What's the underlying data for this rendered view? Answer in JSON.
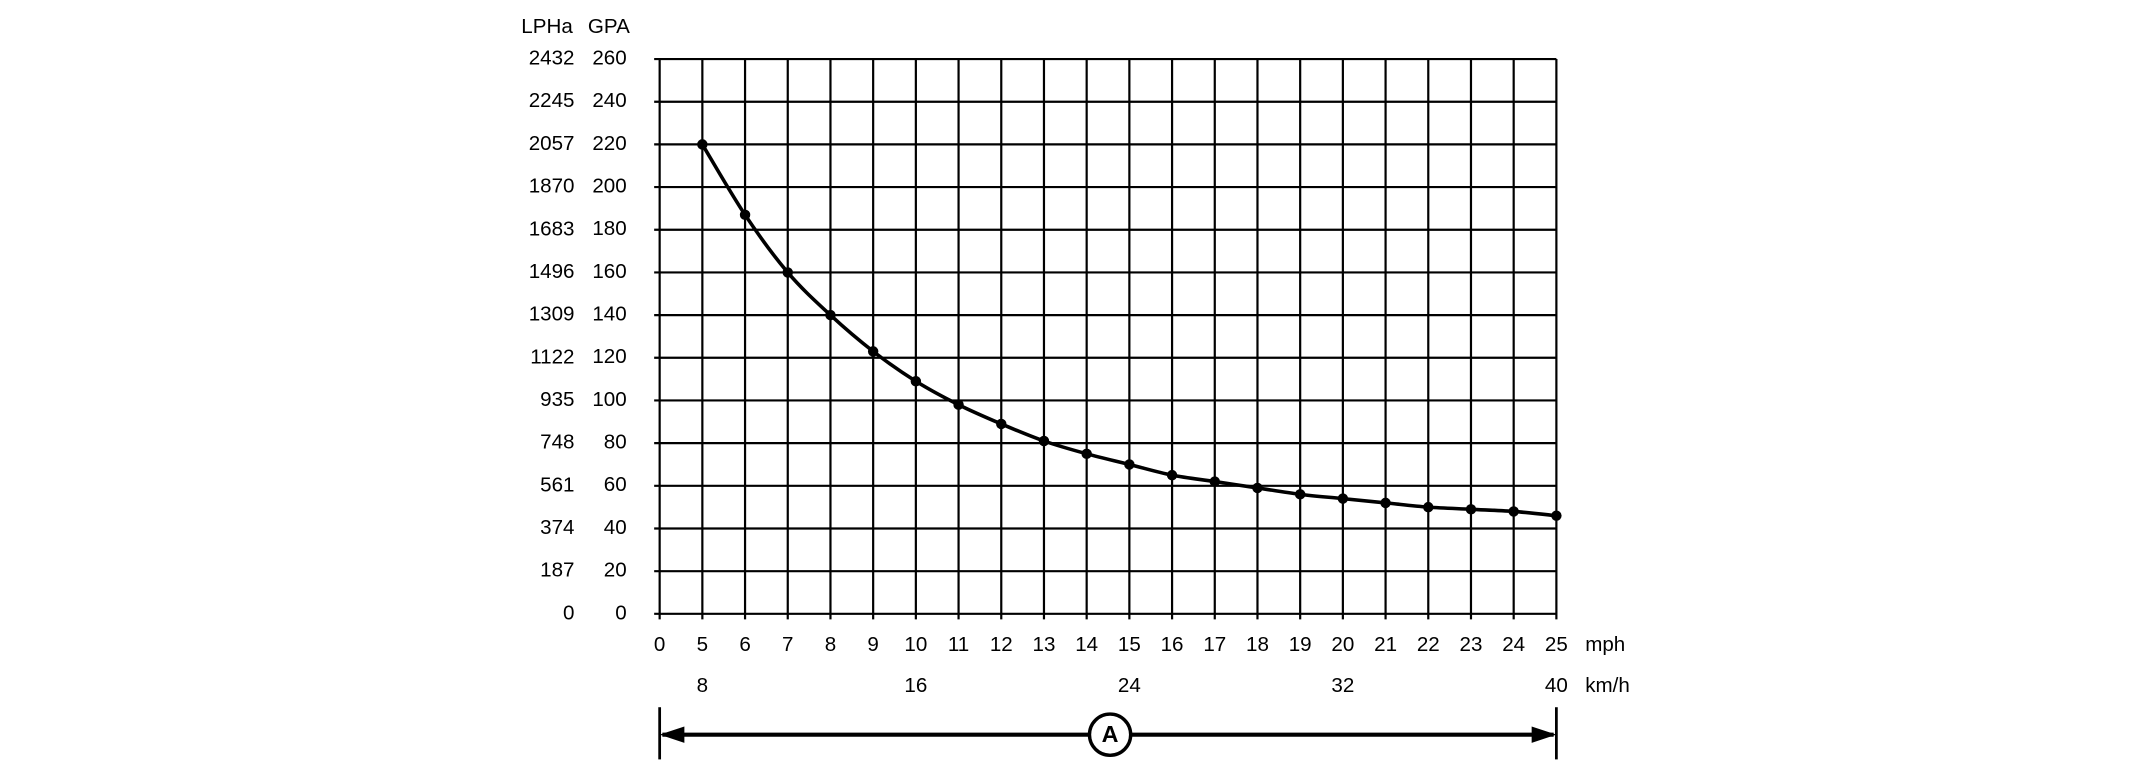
{
  "chart_data": {
    "type": "line",
    "y_axis_label": "GPA",
    "y2_axis_label": "LPHa",
    "x_axis_label": "mph",
    "x2_axis_label": "km/h",
    "annotation": "A",
    "categories": [
      "0",
      "5",
      "6",
      "7",
      "8",
      "9",
      "10",
      "11",
      "12",
      "13",
      "14",
      "15",
      "16",
      "17",
      "18",
      "19",
      "20",
      "21",
      "22",
      "23",
      "24",
      "25"
    ],
    "series": [
      {
        "name": "GPA",
        "color": "#000000",
        "values": [
          null,
          220,
          187,
          160,
          140,
          123,
          109,
          98,
          89,
          81,
          75,
          70,
          65,
          62,
          59,
          56,
          54,
          52,
          50,
          49,
          48,
          46
        ]
      }
    ],
    "ylim": [
      0,
      260
    ],
    "yticks": [
      0,
      20,
      40,
      60,
      80,
      100,
      120,
      140,
      160,
      180,
      200,
      220,
      240,
      260
    ],
    "y2lim": [
      0,
      2432
    ],
    "y2ticks": [
      0,
      187,
      374,
      561,
      748,
      935,
      1122,
      1309,
      1496,
      1683,
      1870,
      2057,
      2245,
      2432
    ],
    "x2lim": [
      8,
      40
    ],
    "x2ticks": [
      8,
      16,
      24,
      32,
      40
    ],
    "grid": true
  }
}
